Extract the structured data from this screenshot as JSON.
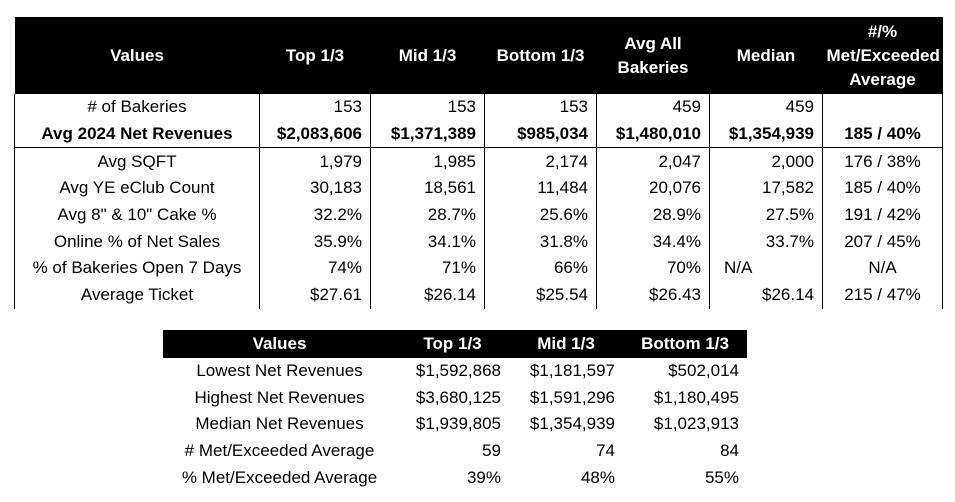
{
  "top_table": {
    "headers": [
      "Values",
      "Top 1/3",
      "Mid 1/3",
      "Bottom 1/3",
      "Avg All Bakeries",
      "Median",
      "#/% Met/Exceeded Average"
    ],
    "rows": [
      {
        "label": "# of Bakeries",
        "cells": [
          "153",
          "153",
          "153",
          "459",
          "459",
          ""
        ]
      },
      {
        "label": "Avg 2024 Net Revenues",
        "cells": [
          "$2,083,606",
          "$1,371,389",
          "$985,034",
          "$1,480,010",
          "$1,354,939",
          "185 / 40%"
        ]
      },
      {
        "label": "Avg SQFT",
        "cells": [
          "1,979",
          "1,985",
          "2,174",
          "2,047",
          "2,000",
          "176 / 38%"
        ]
      },
      {
        "label": "Avg YE eClub Count",
        "cells": [
          "30,183",
          "18,561",
          "11,484",
          "20,076",
          "17,582",
          "185 / 40%"
        ]
      },
      {
        "label": "Avg 8\" & 10\" Cake %",
        "cells": [
          "32.2%",
          "28.7%",
          "25.6%",
          "28.9%",
          "27.5%",
          "191 / 42%"
        ]
      },
      {
        "label": "Online % of Net Sales",
        "cells": [
          "35.9%",
          "34.1%",
          "31.8%",
          "34.4%",
          "33.7%",
          "207 / 45%"
        ]
      },
      {
        "label": "% of Bakeries Open 7 Days",
        "cells": [
          "74%",
          "71%",
          "66%",
          "70%",
          "N/A",
          "N/A"
        ]
      },
      {
        "label": "Average Ticket",
        "cells": [
          "$27.61",
          "$26.14",
          "$25.54",
          "$26.43",
          "$26.14",
          "215 / 47%"
        ]
      }
    ]
  },
  "bottom_table": {
    "headers": [
      "Values",
      "Top 1/3",
      "Mid 1/3",
      "Bottom 1/3"
    ],
    "rows": [
      {
        "label": "Lowest Net Revenues",
        "cells": [
          "$1,592,868",
          "$1,181,597",
          "$502,014"
        ]
      },
      {
        "label": "Highest Net Revenues",
        "cells": [
          "$3,680,125",
          "$1,591,296",
          "$1,180,495"
        ]
      },
      {
        "label": "Median Net Revenues",
        "cells": [
          "$1,939,805",
          "$1,354,939",
          "$1,023,913"
        ]
      },
      {
        "label": "# Met/Exceeded Average",
        "cells": [
          "59",
          "74",
          "84"
        ]
      },
      {
        "label": "% Met/Exceeded Average",
        "cells": [
          "39%",
          "48%",
          "55%"
        ]
      }
    ]
  }
}
